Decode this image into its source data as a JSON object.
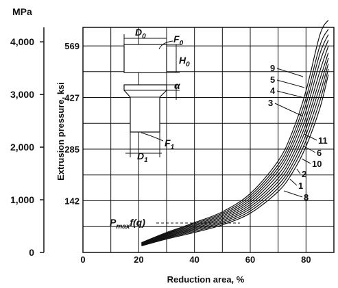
{
  "chart_data": {
    "type": "line",
    "title": "",
    "xlabel": "Reduction area, %",
    "ylabel": "Extrusion pressure, ksi",
    "secondary_axis_unit": "MPa",
    "xlim": [
      0,
      90
    ],
    "ylim_ksi": [
      0,
      620
    ],
    "x_ticks": [
      "0",
      "20",
      "40",
      "60",
      "80"
    ],
    "y_ticks_ksi": [
      "142",
      "285",
      "427",
      "569"
    ],
    "y_ticks_mpa": [
      "0",
      "1,000",
      "2,000",
      "3,000",
      "4,000"
    ],
    "grid": true,
    "annotation": {
      "base": "P",
      "sub": "max",
      "rest": "f(q)"
    },
    "x": [
      21,
      30,
      40,
      50,
      60,
      70,
      75,
      80,
      85,
      88
    ],
    "series": [
      {
        "name": "9",
        "values": [
          27,
          55,
          82,
          112,
          162,
          252,
          330,
          445,
          600,
          640
        ]
      },
      {
        "name": "5",
        "values": [
          26,
          53,
          79,
          108,
          156,
          242,
          316,
          425,
          570,
          615
        ]
      },
      {
        "name": "4",
        "values": [
          25,
          51,
          76,
          104,
          150,
          233,
          303,
          408,
          548,
          600
        ]
      },
      {
        "name": "3",
        "values": [
          24,
          49,
          73,
          100,
          144,
          224,
          291,
          390,
          525,
          585
        ]
      },
      {
        "name": "11",
        "values": [
          23,
          47,
          70,
          96,
          138,
          214,
          278,
          372,
          500,
          568
        ]
      },
      {
        "name": "6",
        "values": [
          22,
          45,
          67,
          92,
          132,
          204,
          265,
          355,
          478,
          550
        ]
      },
      {
        "name": "10",
        "values": [
          21,
          43,
          64,
          88,
          126,
          195,
          253,
          340,
          458,
          535
        ]
      },
      {
        "name": "2",
        "values": [
          20,
          41,
          61,
          84,
          120,
          186,
          241,
          324,
          438,
          520
        ]
      },
      {
        "name": "1",
        "values": [
          19,
          39,
          58,
          80,
          114,
          177,
          230,
          308,
          418,
          505
        ]
      },
      {
        "name": "8",
        "values": [
          18,
          37,
          55,
          76,
          108,
          168,
          218,
          292,
          398,
          490
        ]
      }
    ],
    "diagram_labels": {
      "d0": {
        "base": "D",
        "sub": "0"
      },
      "f0": {
        "base": "F",
        "sub": "0"
      },
      "h0": {
        "base": "H",
        "sub": "0"
      },
      "alpha": "α",
      "f1": {
        "base": "F",
        "sub": "1"
      },
      "d1": {
        "base": "D",
        "sub": "1"
      }
    }
  }
}
